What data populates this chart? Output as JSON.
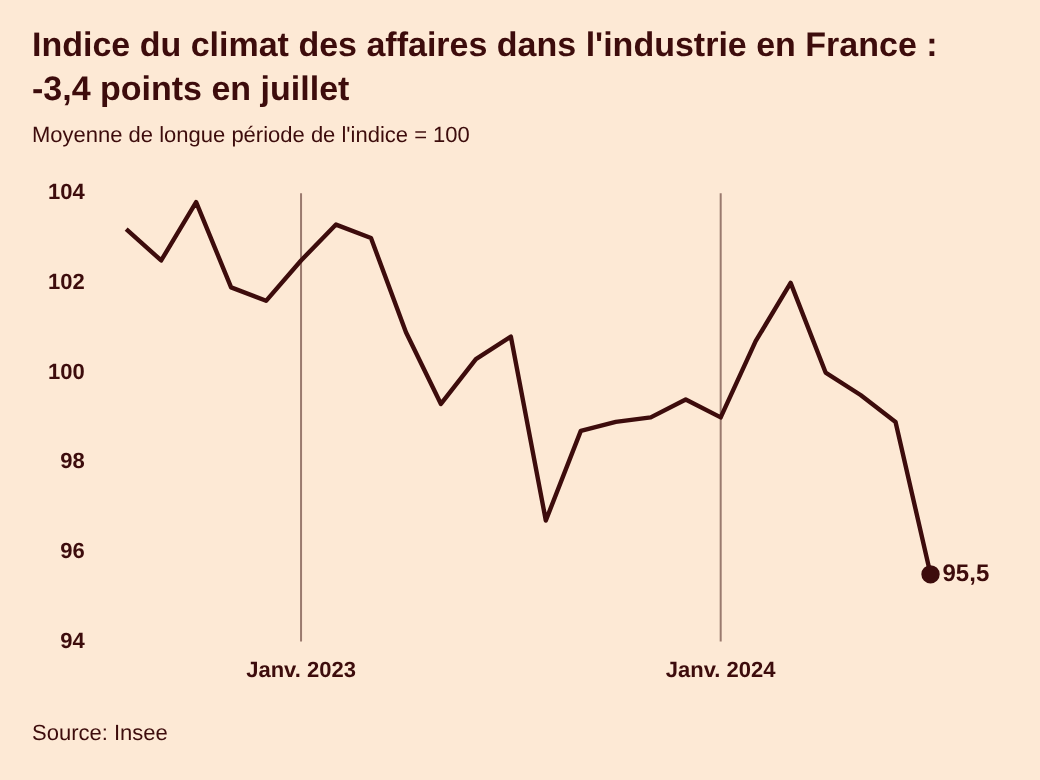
{
  "chart_data": {
    "type": "line",
    "title": "Indice du climat des affaires dans l'industrie en France : -3,4 points en juillet",
    "subtitle": "Moyenne de longue période de l'indice = 100",
    "categories": [
      null,
      null,
      null,
      null,
      null,
      "Janv. 2023",
      null,
      null,
      null,
      null,
      null,
      null,
      null,
      null,
      null,
      null,
      null,
      "Janv. 2024",
      null,
      null,
      null,
      null,
      null,
      null
    ],
    "series": [
      {
        "color": "#3d0c0c",
        "values": [
          103.2,
          102.5,
          103.8,
          101.9,
          101.6,
          102.5,
          103.3,
          103.0,
          100.9,
          99.3,
          100.3,
          100.8,
          96.7,
          98.7,
          98.9,
          99.0,
          99.4,
          99.0,
          100.7,
          102.0,
          100.0,
          99.5,
          98.9,
          95.5
        ],
        "value_labels": [
          null,
          null,
          null,
          null,
          null,
          null,
          null,
          null,
          null,
          null,
          null,
          null,
          null,
          null,
          null,
          null,
          null,
          null,
          null,
          null,
          null,
          null,
          null,
          "95,5"
        ]
      }
    ],
    "ylim": [
      94,
      104
    ],
    "yticks": [
      94,
      96,
      98,
      100,
      102,
      104
    ],
    "ref_lines": [
      {
        "axis": "x",
        "value": "Janv. 2023",
        "color": "#9a7a6e"
      },
      {
        "axis": "x",
        "value": "Janv. 2024",
        "color": "#9a7a6e"
      }
    ],
    "grid": false,
    "legend": false,
    "marker": "none",
    "line_style": "solid",
    "annotations": [
      "Source: Insee"
    ]
  }
}
